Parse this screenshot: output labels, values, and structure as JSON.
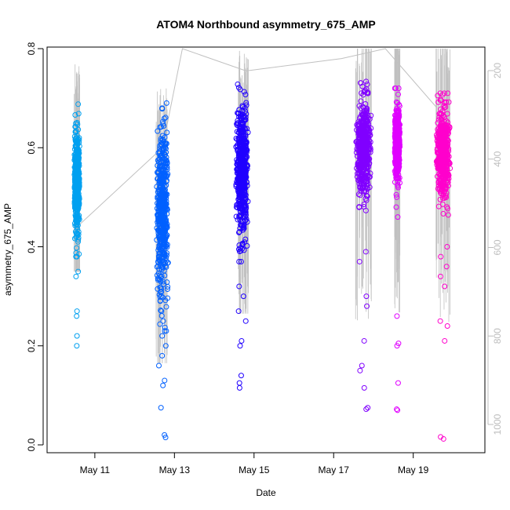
{
  "chart_data": {
    "type": "scatter",
    "title": "ATOM4 Northbound asymmetry_675_AMP",
    "xlabel": "Date",
    "ylabel": "asymmetry_675_AMP",
    "x_ticks": [
      "May 11",
      "May 13",
      "May 15",
      "May 17",
      "May 19"
    ],
    "x_tick_days": [
      11,
      13,
      15,
      17,
      19
    ],
    "xlim": [
      9.8,
      20.8
    ],
    "ylim": [
      0.0,
      0.8
    ],
    "y_ticks": [
      "0.0",
      "0.2",
      "0.4",
      "0.6",
      "0.8"
    ],
    "y_tick_values": [
      0.0,
      0.2,
      0.4,
      0.6,
      0.8
    ],
    "secondary_axis": {
      "side": "right",
      "reversed": true,
      "ylim": [
        1050,
        100
      ],
      "ticks": [
        "200",
        "400",
        "600",
        "800",
        "1000"
      ],
      "tick_values": [
        200,
        400,
        600,
        800,
        1000
      ],
      "color": "#bdbdbd"
    },
    "grid": false,
    "series": [
      {
        "color": "#00a0f0",
        "x_center": 10.55,
        "x_halfwidth": 0.07,
        "y_median": 0.53,
        "y_spread": 0.05,
        "y_min": 0.2,
        "y_max": 0.7,
        "outliers": [
          0.2,
          0.22,
          0.26,
          0.27,
          0.34,
          0.35,
          0.38,
          0.41
        ]
      },
      {
        "color": "#0060ff",
        "x_center": 12.7,
        "x_halfwidth": 0.16,
        "y_median": 0.47,
        "y_spread": 0.08,
        "y_min": 0.015,
        "y_max": 0.74,
        "outliers": [
          0.015,
          0.02,
          0.075,
          0.12,
          0.13,
          0.16,
          0.18,
          0.2,
          0.22,
          0.25,
          0.27,
          0.3
        ]
      },
      {
        "color": "#2000ff",
        "x_center": 14.7,
        "x_halfwidth": 0.16,
        "y_median": 0.55,
        "y_spread": 0.06,
        "y_min": 0.115,
        "y_max": 0.77,
        "outliers": [
          0.115,
          0.125,
          0.14,
          0.2,
          0.21,
          0.25,
          0.27,
          0.3,
          0.32
        ]
      },
      {
        "color": "#8000ff",
        "x_center": 17.75,
        "x_halfwidth": 0.2,
        "y_median": 0.6,
        "y_spread": 0.045,
        "y_min": 0.07,
        "y_max": 0.74,
        "outliers": [
          0.072,
          0.075,
          0.115,
          0.15,
          0.16,
          0.21,
          0.28,
          0.3,
          0.37,
          0.39
        ]
      },
      {
        "color": "#e000ff",
        "x_center": 18.6,
        "x_halfwidth": 0.07,
        "y_median": 0.61,
        "y_spread": 0.035,
        "y_min": 0.07,
        "y_max": 0.72,
        "outliers": [
          0.07,
          0.072,
          0.125,
          0.2,
          0.205,
          0.26,
          0.46,
          0.48,
          0.5
        ]
      },
      {
        "color": "#ff00cc",
        "x_center": 19.75,
        "x_halfwidth": 0.18,
        "y_median": 0.59,
        "y_spread": 0.045,
        "y_min": 0.012,
        "y_max": 0.71,
        "outliers": [
          0.012,
          0.016,
          0.21,
          0.24,
          0.25,
          0.32,
          0.34,
          0.36,
          0.38,
          0.4
        ]
      }
    ],
    "gray_line": {
      "color": "#c0c0c0",
      "points": [
        [
          10.55,
          0.44
        ],
        [
          12.7,
          0.6
        ],
        [
          13.2,
          0.8
        ],
        [
          14.8,
          0.755
        ],
        [
          17.2,
          0.78
        ],
        [
          18.3,
          0.8
        ],
        [
          19.6,
          0.68
        ]
      ]
    }
  }
}
